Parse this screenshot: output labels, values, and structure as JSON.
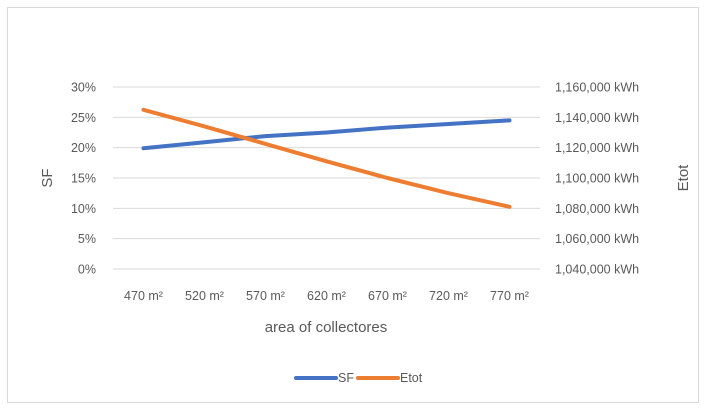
{
  "chart_data": {
    "type": "line",
    "title": "",
    "categories": [
      "470 m²",
      "520 m²",
      "570 m²",
      "620 m²",
      "670 m²",
      "720 m²",
      "770 m²"
    ],
    "xlabel": "area of collectores",
    "ylabel": "SF",
    "y2label": "Etot",
    "y_ticks": [
      "0%",
      "5%",
      "10%",
      "15%",
      "20%",
      "25%",
      "30%"
    ],
    "y2_ticks": [
      "1,040,000 kWh",
      "1,060,000 kWh",
      "1,080,000 kWh",
      "1,100,000 kWh",
      "1,120,000 kWh",
      "1,140,000 kWh",
      "1,160,000 kWh"
    ],
    "ylim": [
      0,
      0.3
    ],
    "y2lim": [
      1040000,
      1160000
    ],
    "grid": true,
    "legend_position": "bottom",
    "series": [
      {
        "name": "SF",
        "axis": "left",
        "color": "#4472C4",
        "values": [
          0.199,
          0.209,
          0.219,
          0.225,
          0.233,
          0.239,
          0.245
        ]
      },
      {
        "name": "Etot",
        "axis": "right",
        "color": "#ED7D31",
        "values": [
          1145000,
          1134000,
          1122500,
          1111000,
          1100000,
          1090000,
          1081000
        ]
      }
    ]
  }
}
